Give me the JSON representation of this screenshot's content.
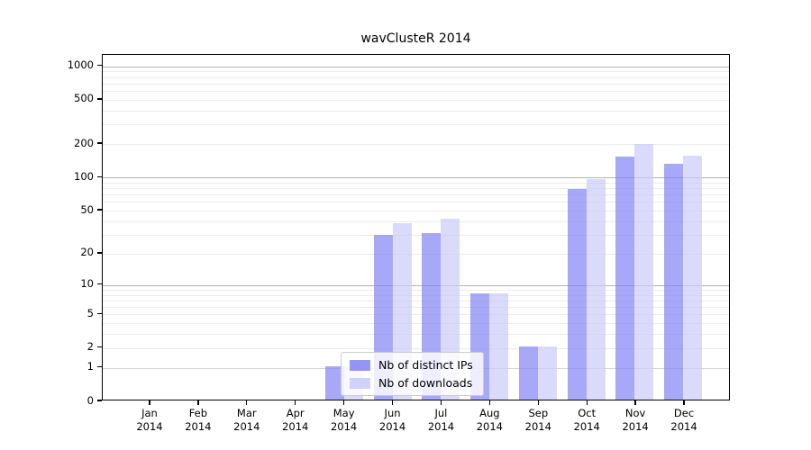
{
  "figure": {
    "title": "wavClusteR 2014",
    "background": "#ffffff",
    "axis_color": "#000000",
    "major_grid_color": "#b3b3b3",
    "minor_grid_color": "#ececec"
  },
  "legend": {
    "items": [
      {
        "label": "Nb of distinct IPs",
        "color": "#8383f5"
      },
      {
        "label": "Nb of downloads",
        "color": "#cacaf8"
      }
    ]
  },
  "chart_data": {
    "type": "bar",
    "title": "wavClusteR 2014",
    "categories": [
      "Jan 2014",
      "Feb 2014",
      "Mar 2014",
      "Apr 2014",
      "May 2014",
      "Jun 2014",
      "Jul 2014",
      "Aug 2014",
      "Sep 2014",
      "Oct 2014",
      "Nov 2014",
      "Dec 2014"
    ],
    "series": [
      {
        "name": "Nb of distinct IPs",
        "color": "#8383f5",
        "opacity": 0.7,
        "color_on_white": "#a8a8f8",
        "values": [
          0,
          0,
          0,
          0,
          1,
          29,
          30,
          8,
          2,
          76,
          150,
          129
        ]
      },
      {
        "name": "Nb of downloads",
        "color": "#cacaf8",
        "opacity": 0.7,
        "color_on_white": "#dadaf8",
        "values": [
          0,
          0,
          0,
          0,
          1,
          37,
          41,
          8,
          2,
          93,
          192,
          153
        ]
      }
    ],
    "xlabel": "",
    "ylabel": "",
    "y_axis": {
      "scale": "log10(1+x)",
      "ticks": [
        0,
        1,
        2,
        5,
        10,
        20,
        50,
        100,
        200,
        500,
        1000
      ],
      "major_gridlines": [
        10,
        100,
        1000
      ],
      "top_value": 1265
    },
    "grid": true,
    "legend_position": "inside-bottom-center"
  }
}
